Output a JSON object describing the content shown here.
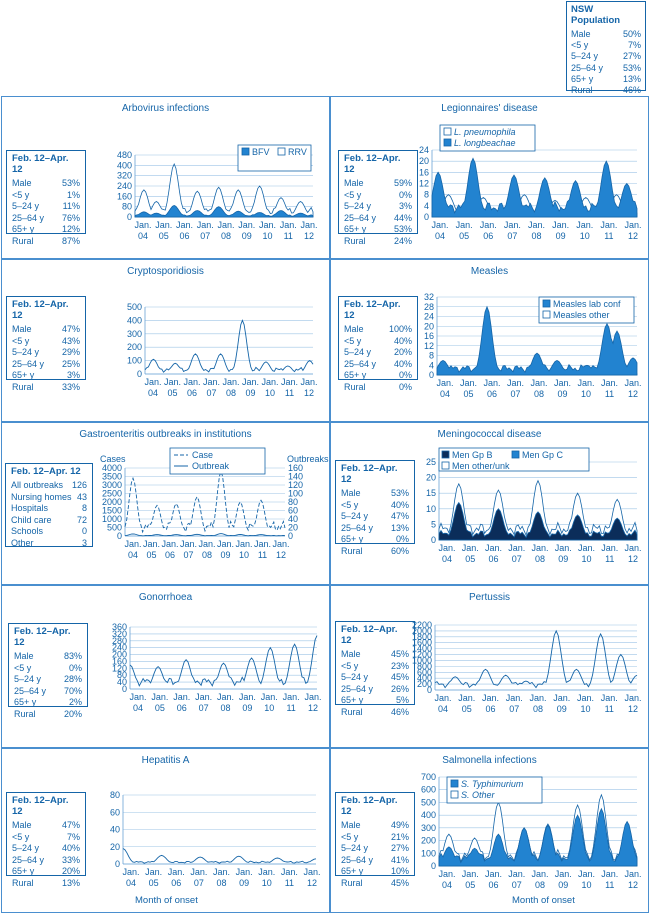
{
  "population": {
    "title": "NSW Population",
    "rows": [
      [
        "Male",
        "50%"
      ],
      [
        "<5 y",
        "7%"
      ],
      [
        "5–24 y",
        "27%"
      ],
      [
        "25–64 y",
        "53%"
      ],
      [
        "65+ y",
        "13%"
      ],
      [
        "Rural",
        "46%"
      ]
    ]
  },
  "x_axis": {
    "months": [
      "Jan.",
      "Jan.",
      "Jan.",
      "Jan.",
      "Jan.",
      "Jan.",
      "Jan.",
      "Jan.",
      "Jan."
    ],
    "years": [
      "04",
      "05",
      "06",
      "07",
      "08",
      "09",
      "10",
      "11",
      "12"
    ]
  },
  "footer_label": "Month of onset",
  "panels": [
    {
      "title": "Arbovirus infections",
      "stat_title": "Feb. 12–Apr. 12",
      "stats": [
        [
          "Male",
          "53%"
        ],
        [
          "<5 y",
          "1%"
        ],
        [
          "5–24 y",
          "11%"
        ],
        [
          "25–64 y",
          "76%"
        ],
        [
          "65+ y",
          "12%"
        ],
        [
          "Rural",
          "87%"
        ]
      ],
      "legend": [
        "BFV",
        "RRV"
      ]
    },
    {
      "title": "Legionnaires' disease",
      "stat_title": "Feb. 12–Apr. 12",
      "stats": [
        [
          "Male",
          "59%"
        ],
        [
          "<5 y",
          "0%"
        ],
        [
          "5–24 y",
          "3%"
        ],
        [
          "25–64 y",
          "44%"
        ],
        [
          "65+ y",
          "53%"
        ],
        [
          "Rural",
          "24%"
        ]
      ],
      "legend": [
        "L. pneumophila",
        "L. longbeachae"
      ]
    },
    {
      "title": "Cryptosporidiosis",
      "stat_title": "Feb. 12–Apr. 12",
      "stats": [
        [
          "Male",
          "47%"
        ],
        [
          "<5 y",
          "43%"
        ],
        [
          "5–24 y",
          "29%"
        ],
        [
          "25–64 y",
          "25%"
        ],
        [
          "65+ y",
          "3%"
        ],
        [
          "Rural",
          "33%"
        ]
      ],
      "legend": []
    },
    {
      "title": "Measles",
      "stat_title": "Feb. 12–Apr. 12",
      "stats": [
        [
          "Male",
          "100%"
        ],
        [
          "<5 y",
          "40%"
        ],
        [
          "5–24 y",
          "20%"
        ],
        [
          "25–64 y",
          "40%"
        ],
        [
          "65+ y",
          "0%"
        ],
        [
          "Rural",
          "0%"
        ]
      ],
      "legend": [
        "Measles lab conf",
        "Measles other"
      ]
    },
    {
      "title": "Gastroenteritis outbreaks in institutions",
      "stat_title": "Feb. 12–Apr. 12",
      "stats": [
        [
          "All outbreaks",
          "126"
        ],
        [
          "Nursing homes",
          "43"
        ],
        [
          "Hospitals",
          "8"
        ],
        [
          "Child care",
          "72"
        ],
        [
          "Schools",
          "0"
        ],
        [
          "Other",
          "3"
        ]
      ],
      "legend": [
        "Case",
        "Outbreak"
      ],
      "left_axis_title": "Cases",
      "right_axis_title": "Outbreaks"
    },
    {
      "title": "Meningococcal disease",
      "stat_title": "Feb. 12–Apr. 12",
      "stats": [
        [
          "Male",
          "53%"
        ],
        [
          "<5 y",
          "40%"
        ],
        [
          "5–24 y",
          "47%"
        ],
        [
          "25–64 y",
          "13%"
        ],
        [
          "65+ y",
          "0%"
        ],
        [
          "Rural",
          "60%"
        ]
      ],
      "legend": [
        "Men Gp B",
        "Men Gp C",
        "Men other/unk"
      ]
    },
    {
      "title": "Gonorrhoea",
      "stat_title": "Feb. 12–Apr. 12",
      "stats": [
        [
          "Male",
          "83%"
        ],
        [
          "<5 y",
          "0%"
        ],
        [
          "5–24 y",
          "28%"
        ],
        [
          "25–64 y",
          "70%"
        ],
        [
          "65+ y",
          "2%"
        ],
        [
          "Rural",
          "20%"
        ]
      ],
      "legend": []
    },
    {
      "title": "Pertussis",
      "stat_title": "Feb. 12–Apr. 12",
      "stats": [
        [
          "Male",
          "45%"
        ],
        [
          "<5 y",
          "23%"
        ],
        [
          "5–24 y",
          "45%"
        ],
        [
          "25–64 y",
          "26%"
        ],
        [
          "65+ y",
          "5%"
        ],
        [
          "Rural",
          "46%"
        ]
      ],
      "legend": []
    },
    {
      "title": "Hepatitis A",
      "stat_title": "Feb. 12–Apr. 12",
      "stats": [
        [
          "Male",
          "47%"
        ],
        [
          "<5 y",
          "7%"
        ],
        [
          "5–24 y",
          "40%"
        ],
        [
          "25–64 y",
          "33%"
        ],
        [
          "65+ y",
          "20%"
        ],
        [
          "Rural",
          "13%"
        ]
      ],
      "legend": []
    },
    {
      "title": "Salmonella infections",
      "stat_title": "Feb. 12–Apr. 12",
      "stats": [
        [
          "Male",
          "49%"
        ],
        [
          "<5 y",
          "21%"
        ],
        [
          "5–24 y",
          "27%"
        ],
        [
          "25–64 y",
          "41%"
        ],
        [
          "65+ y",
          "10%"
        ],
        [
          "Rural",
          "45%"
        ]
      ],
      "legend": [
        "S. Typhimurium",
        "S. Other"
      ]
    }
  ],
  "chart_data": [
    {
      "type": "area",
      "title": "Arbovirus infections",
      "ylim": [
        0,
        480
      ],
      "yticks": [
        0,
        80,
        160,
        240,
        320,
        400,
        480
      ],
      "series": [
        {
          "name": "BFV",
          "peaks": [
            [
              0.05,
              40
            ],
            [
              0.12,
              30
            ],
            [
              0.22,
              90
            ],
            [
              0.35,
              50
            ],
            [
              0.47,
              80
            ],
            [
              0.58,
              45
            ],
            [
              0.7,
              35
            ],
            [
              0.82,
              50
            ],
            [
              0.93,
              30
            ]
          ]
        },
        {
          "name": "RRV",
          "peaks": [
            [
              0.05,
              210
            ],
            [
              0.12,
              120
            ],
            [
              0.22,
              410
            ],
            [
              0.35,
              200
            ],
            [
              0.47,
              230
            ],
            [
              0.58,
              210
            ],
            [
              0.7,
              240
            ],
            [
              0.82,
              150
            ],
            [
              0.93,
              120
            ]
          ]
        }
      ]
    },
    {
      "type": "area",
      "title": "Legionnaires' disease",
      "ylim": [
        0,
        24
      ],
      "yticks": [
        0,
        4,
        8,
        12,
        16,
        20,
        24
      ],
      "series": [
        {
          "name": "L. pneumophila",
          "peaks": [
            [
              0.03,
              16
            ],
            [
              0.2,
              21
            ],
            [
              0.4,
              15
            ],
            [
              0.55,
              14
            ],
            [
              0.7,
              13
            ],
            [
              0.85,
              20
            ],
            [
              0.95,
              12
            ]
          ]
        },
        {
          "name": "L. longbeachae",
          "peaks": [
            [
              0.08,
              8
            ],
            [
              0.25,
              7
            ],
            [
              0.45,
              8
            ],
            [
              0.6,
              6
            ],
            [
              0.75,
              7
            ],
            [
              0.9,
              8
            ]
          ]
        }
      ]
    },
    {
      "type": "line",
      "title": "Cryptosporidiosis",
      "ylim": [
        0,
        500
      ],
      "yticks": [
        0,
        100,
        200,
        300,
        400,
        500
      ],
      "series": [
        {
          "name": "",
          "peaks": [
            [
              0.05,
              110
            ],
            [
              0.18,
              80
            ],
            [
              0.3,
              150
            ],
            [
              0.45,
              150
            ],
            [
              0.58,
              400
            ],
            [
              0.72,
              90
            ],
            [
              0.85,
              60
            ],
            [
              0.98,
              100
            ]
          ]
        }
      ]
    },
    {
      "type": "area",
      "title": "Measles",
      "ylim": [
        0,
        32
      ],
      "yticks": [
        0,
        4,
        8,
        12,
        16,
        20,
        24,
        28,
        32
      ],
      "series": [
        {
          "name": "Measles lab conf",
          "peaks": [
            [
              0.03,
              6
            ],
            [
              0.25,
              28
            ],
            [
              0.5,
              9
            ],
            [
              0.6,
              6
            ],
            [
              0.75,
              4
            ],
            [
              0.85,
              21
            ],
            [
              0.9,
              18
            ],
            [
              0.98,
              7
            ]
          ]
        },
        {
          "name": "Measles other",
          "peaks": [
            [
              0.25,
              3
            ],
            [
              0.85,
              2
            ]
          ]
        }
      ]
    },
    {
      "type": "line",
      "title": "Gastroenteritis outbreaks in institutions",
      "ylim": [
        0,
        4000
      ],
      "y2lim": [
        0,
        160
      ],
      "yticks": [
        0,
        500,
        1000,
        1500,
        2000,
        2500,
        3000,
        3500,
        4000
      ],
      "y2ticks": [
        0,
        20,
        40,
        60,
        80,
        100,
        120,
        140,
        160
      ],
      "series": [
        {
          "name": "Case",
          "peaks": [
            [
              0.05,
              3400
            ],
            [
              0.2,
              1800
            ],
            [
              0.32,
              1900
            ],
            [
              0.45,
              2300
            ],
            [
              0.6,
              3800
            ],
            [
              0.72,
              2000
            ],
            [
              0.85,
              2100
            ]
          ]
        },
        {
          "name": "Outbreak",
          "peaks": [
            [
              0.05,
              120
            ],
            [
              0.2,
              80
            ],
            [
              0.32,
              85
            ],
            [
              0.45,
              100
            ],
            [
              0.6,
              140
            ],
            [
              0.72,
              90
            ],
            [
              0.85,
              80
            ]
          ]
        }
      ]
    },
    {
      "type": "area",
      "title": "Meningococcal disease",
      "ylim": [
        0,
        25
      ],
      "yticks": [
        0,
        5,
        10,
        15,
        20,
        25
      ],
      "series": [
        {
          "name": "Men Gp B",
          "peaks": [
            [
              0.1,
              12
            ],
            [
              0.3,
              10
            ],
            [
              0.5,
              9
            ],
            [
              0.7,
              8
            ],
            [
              0.9,
              7
            ]
          ]
        },
        {
          "name": "Men Gp C",
          "peaks": [
            [
              0.1,
              4
            ],
            [
              0.3,
              3
            ],
            [
              0.5,
              2
            ],
            [
              0.7,
              2
            ],
            [
              0.9,
              1
            ]
          ]
        },
        {
          "name": "Men other/unk",
          "peaks": [
            [
              0.1,
              18
            ],
            [
              0.3,
              16
            ],
            [
              0.5,
              19
            ],
            [
              0.7,
              15
            ],
            [
              0.9,
              13
            ]
          ]
        }
      ]
    },
    {
      "type": "line",
      "title": "Gonorrhoea",
      "ylim": [
        0,
        360
      ],
      "yticks": [
        0,
        40,
        80,
        120,
        160,
        200,
        240,
        280,
        320,
        360
      ],
      "series": [
        {
          "name": "",
          "peaks": [
            [
              0.0,
              140
            ],
            [
              0.15,
              130
            ],
            [
              0.3,
              170
            ],
            [
              0.5,
              150
            ],
            [
              0.65,
              180
            ],
            [
              0.75,
              240
            ],
            [
              0.88,
              260
            ],
            [
              1.0,
              310
            ]
          ]
        }
      ]
    },
    {
      "type": "line",
      "title": "Pertussis",
      "ylim": [
        0,
        2200
      ],
      "yticks": [
        0,
        200,
        400,
        600,
        800,
        1000,
        1200,
        1400,
        1600,
        1800,
        2000,
        2200
      ],
      "series": [
        {
          "name": "",
          "peaks": [
            [
              0.0,
              250
            ],
            [
              0.1,
              450
            ],
            [
              0.25,
              700
            ],
            [
              0.35,
              500
            ],
            [
              0.45,
              300
            ],
            [
              0.6,
              2000
            ],
            [
              0.7,
              700
            ],
            [
              0.82,
              1900
            ],
            [
              0.92,
              1200
            ],
            [
              1.0,
              500
            ]
          ]
        }
      ]
    },
    {
      "type": "line",
      "title": "Hepatitis A",
      "ylim": [
        0,
        80
      ],
      "yticks": [
        0,
        20,
        40,
        60,
        80
      ],
      "series": [
        {
          "name": "",
          "peaks": [
            [
              0.0,
              18
            ],
            [
              0.2,
              10
            ],
            [
              0.4,
              8
            ],
            [
              0.6,
              9
            ],
            [
              0.8,
              7
            ],
            [
              1.0,
              6
            ]
          ]
        }
      ]
    },
    {
      "type": "area",
      "title": "Salmonella infections",
      "ylim": [
        0,
        700
      ],
      "yticks": [
        0,
        100,
        200,
        300,
        400,
        500,
        600,
        700
      ],
      "series": [
        {
          "name": "S. Typhimurium",
          "peaks": [
            [
              0.05,
              150
            ],
            [
              0.18,
              140
            ],
            [
              0.3,
              250
            ],
            [
              0.43,
              300
            ],
            [
              0.55,
              320
            ],
            [
              0.7,
              400
            ],
            [
              0.82,
              450
            ],
            [
              0.95,
              350
            ]
          ]
        },
        {
          "name": "S. Other",
          "peaks": [
            [
              0.05,
              250
            ],
            [
              0.18,
              220
            ],
            [
              0.3,
              500
            ],
            [
              0.43,
              300
            ],
            [
              0.55,
              330
            ],
            [
              0.7,
              480
            ],
            [
              0.82,
              560
            ],
            [
              0.95,
              330
            ]
          ]
        }
      ]
    }
  ]
}
